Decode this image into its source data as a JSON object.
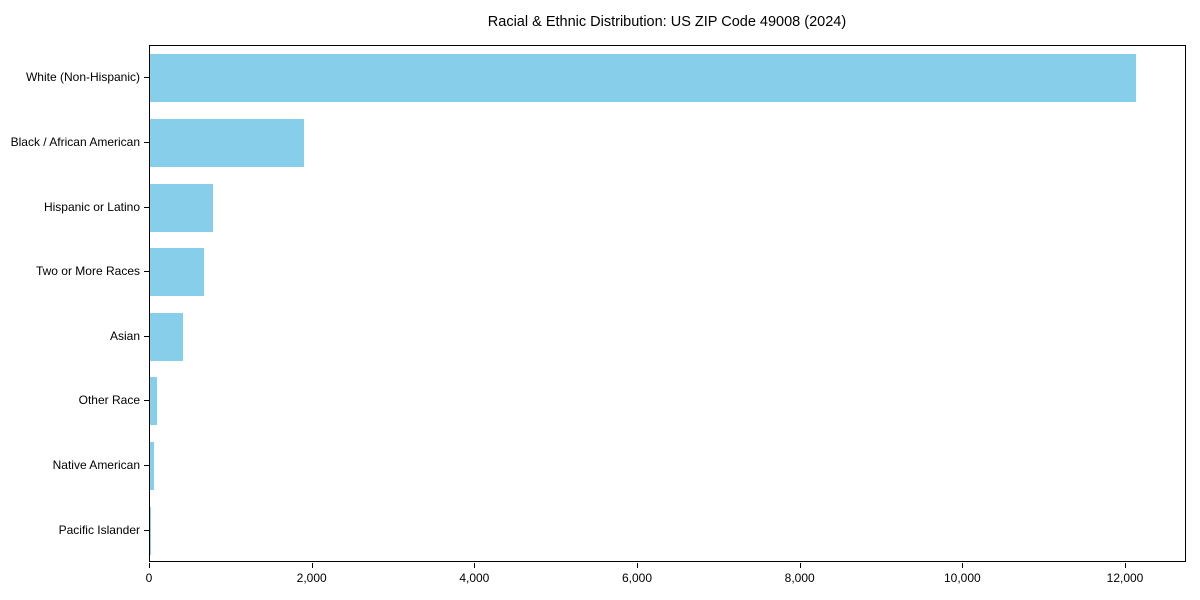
{
  "chart_data": {
    "type": "bar",
    "orientation": "horizontal",
    "title": "Racial & Ethnic Distribution: US ZIP Code 49008 (2024)",
    "categories": [
      "White (Non-Hispanic)",
      "Black / African American",
      "Hispanic or Latino",
      "Two or More Races",
      "Asian",
      "Other Race",
      "Native American",
      "Pacific Islander"
    ],
    "values": [
      12120,
      1890,
      775,
      665,
      405,
      85,
      48,
      10
    ],
    "xlabel": "",
    "ylabel": "",
    "xlim": [
      0,
      12750
    ],
    "xticks": [
      0,
      2000,
      4000,
      6000,
      8000,
      10000,
      12000
    ],
    "xtick_labels": [
      "0",
      "2,000",
      "4,000",
      "6,000",
      "8,000",
      "10,000",
      "12,000"
    ],
    "bar_color": "#87CEEB",
    "axis_color": "#000000",
    "background": "#FFFFFF",
    "grid": false,
    "legend": null
  }
}
